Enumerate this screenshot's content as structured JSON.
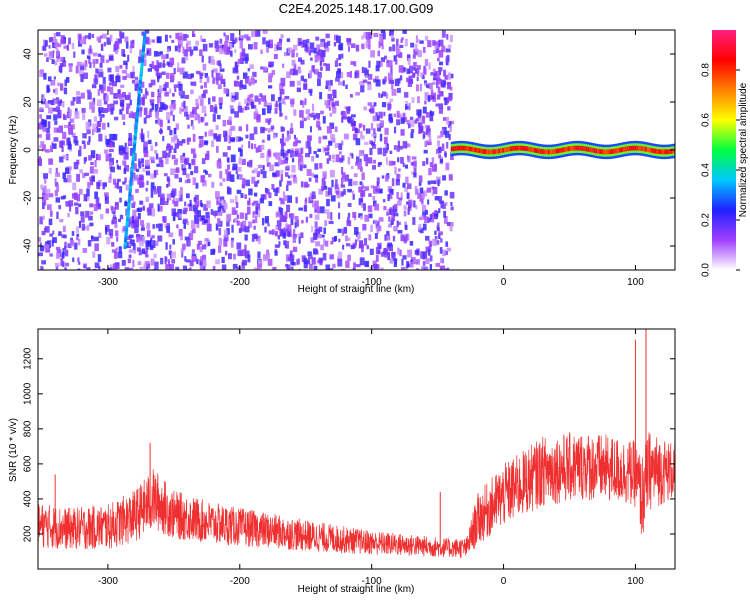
{
  "figure": {
    "title": "C2E4.2025.148.17.00.G09"
  },
  "chart_data": [
    {
      "type": "heatmap",
      "xlabel": "Height of straight line (km)",
      "ylabel": "Frequency (Hz)",
      "xlim": [
        -353,
        130
      ],
      "ylim": [
        -50,
        50
      ],
      "x_ticks": [
        -300,
        -200,
        -100,
        0,
        100
      ],
      "y_ticks": [
        -40,
        -20,
        0,
        20,
        40
      ],
      "colorbar": {
        "label": "Normalized spectral amplitude",
        "ticks": [
          0.0,
          0.2,
          0.4,
          0.6,
          0.8
        ],
        "range": [
          0,
          0.96
        ],
        "colormap": [
          "#ffffff",
          "#a040ff",
          "#2020ff",
          "#00c8ff",
          "#00ff40",
          "#ffff00",
          "#ff8000",
          "#ff0000",
          "#ff2080"
        ]
      },
      "features": [
        {
          "description_kind": "diagonal streak",
          "x_start": -287,
          "y_start": -40,
          "x_end": -272,
          "y_end": 48,
          "level": 0.3
        },
        {
          "description_kind": "noise field",
          "x_from": -353,
          "x_to": -40,
          "level": 0.15
        },
        {
          "description_kind": "carrier line",
          "x_from": -40,
          "x_to": 130,
          "y": 0,
          "level": 0.85
        }
      ]
    },
    {
      "type": "line",
      "xlabel": "Height of straight line (km)",
      "ylabel": "SNR (10 * v/v)",
      "xlim": [
        -353,
        130
      ],
      "ylim": [
        0,
        1370
      ],
      "x_ticks": [
        -300,
        -200,
        -100,
        0,
        100
      ],
      "y_ticks": [
        200,
        400,
        600,
        800,
        1000,
        1200
      ],
      "color": "#f03030",
      "series_envelope": {
        "x": [
          -353,
          -330,
          -300,
          -280,
          -265,
          -250,
          -220,
          -200,
          -150,
          -100,
          -60,
          -40,
          -28,
          -20,
          0,
          30,
          60,
          90,
          100,
          105,
          110,
          130
        ],
        "mean": [
          250,
          230,
          240,
          300,
          400,
          310,
          260,
          240,
          190,
          150,
          130,
          120,
          120,
          280,
          420,
          560,
          590,
          560,
          540,
          400,
          560,
          560
        ],
        "spread": [
          130,
          120,
          130,
          150,
          180,
          140,
          120,
          110,
          90,
          70,
          60,
          55,
          60,
          150,
          180,
          200,
          200,
          190,
          190,
          250,
          230,
          160
        ]
      },
      "spikes": [
        {
          "x": -340,
          "y": 540
        },
        {
          "x": -268,
          "y": 720
        },
        {
          "x": -48,
          "y": 440
        },
        {
          "x": 100,
          "y": 1310
        },
        {
          "x": 108,
          "y": 1370
        }
      ]
    }
  ]
}
